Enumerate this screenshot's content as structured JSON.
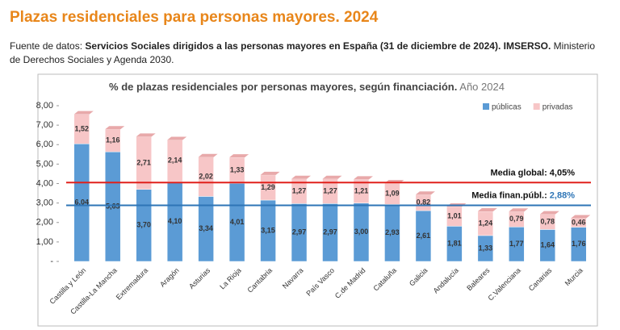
{
  "header": {
    "title": "Plazas residenciales para personas mayores. 2024",
    "source": [
      {
        "text": "Fuente de datos: ",
        "bold": false
      },
      {
        "text": "Servicios Sociales dirigidos a las personas mayores en España (31 de diciembre de 2024). IMSERSO.",
        "bold": true
      },
      {
        "text": " Ministerio de Derechos Sociales y Agenda 2030.",
        "bold": false
      }
    ]
  },
  "chart_data": {
    "type": "bar",
    "stacked": true,
    "title": "% de plazas residenciales por personas mayores, según financiación.",
    "subtitle": "Año 2024",
    "categories": [
      "Castilla y León",
      "Castilla-La Mancha",
      "Extremadura",
      "Aragón",
      "Asturias",
      "La Rioja",
      "Cantabria",
      "Navarra",
      "País Vasco",
      "C.de Madrid",
      "Cataluña",
      "Galicia",
      "Andalucía",
      "Baleares",
      "C.Valenciana",
      "Canarias",
      "Murcia"
    ],
    "series": [
      {
        "name": "públicas",
        "color": "#5b9bd5",
        "values": [
          6.04,
          5.63,
          3.7,
          4.1,
          3.34,
          4.01,
          3.15,
          2.97,
          2.97,
          3.0,
          2.93,
          2.61,
          1.81,
          1.33,
          1.77,
          1.64,
          1.76
        ],
        "value_labels": [
          "6,04",
          "5,63",
          "3,70",
          "4,10",
          "3,34",
          "4,01",
          "3,15",
          "2,97",
          "2,97",
          "3,00",
          "2,93",
          "2,61",
          "1,81",
          "1,33",
          "1,77",
          "1,64",
          "1,76"
        ]
      },
      {
        "name": "privadas",
        "color": "#f7c6c7",
        "values": [
          1.52,
          1.16,
          2.71,
          2.14,
          2.02,
          1.33,
          1.29,
          1.27,
          1.27,
          1.21,
          1.09,
          0.82,
          1.01,
          1.24,
          0.79,
          0.78,
          0.46
        ],
        "value_labels": [
          "1,52",
          "1,16",
          "2,71",
          "2,14",
          "2,02",
          "1,33",
          "1,29",
          "1,27",
          "1,27",
          "1,21",
          "1,09",
          "0,82",
          "1,01",
          "1,24",
          "0,79",
          "0,78",
          "0,46"
        ]
      }
    ],
    "reference_lines": [
      {
        "label": "Media global:",
        "value": 4.05,
        "value_label": "4,05%",
        "color": "#e0201b",
        "value_color": "#111111"
      },
      {
        "label": "Media finan.públ.:",
        "value": 2.88,
        "value_label": "2,88%",
        "color": "#2e75b6",
        "value_color": "#2e75b6"
      }
    ],
    "ylim": [
      0,
      8
    ],
    "yticks": [
      {
        "value": 0,
        "label": "-"
      },
      {
        "value": 1,
        "label": "1,00"
      },
      {
        "value": 2,
        "label": "2,00"
      },
      {
        "value": 3,
        "label": "3,00"
      },
      {
        "value": 4,
        "label": "4,00"
      },
      {
        "value": 5,
        "label": "5,00"
      },
      {
        "value": 6,
        "label": "6,00"
      },
      {
        "value": 7,
        "label": "7,00"
      },
      {
        "value": 8,
        "label": "8,00"
      }
    ],
    "grid": false,
    "legend": "top-right"
  }
}
